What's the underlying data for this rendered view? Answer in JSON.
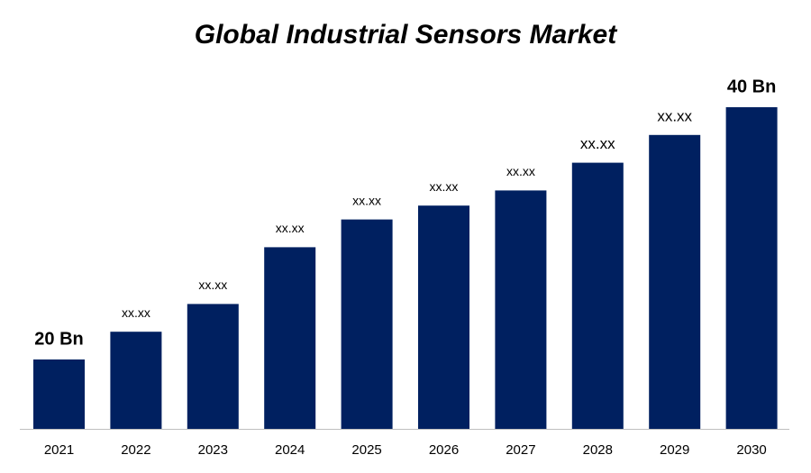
{
  "chart_data": {
    "type": "bar",
    "title": "Global Industrial Sensors Market",
    "categories": [
      "2021",
      "2022",
      "2023",
      "2024",
      "2025",
      "2026",
      "2027",
      "2028",
      "2029",
      "2030"
    ],
    "values": [
      20,
      22.2,
      24.4,
      28.9,
      31.1,
      32.2,
      33.4,
      35.6,
      37.8,
      40
    ],
    "value_labels": [
      "20 Bn",
      "xx.xx",
      "xx.xx",
      "xx.xx",
      "xx.xx",
      "xx.xx",
      "xx.xx",
      "xx.xx",
      "xx.xx",
      "40 Bn"
    ],
    "color": "#002060",
    "ylim": [
      14.5,
      40
    ]
  }
}
